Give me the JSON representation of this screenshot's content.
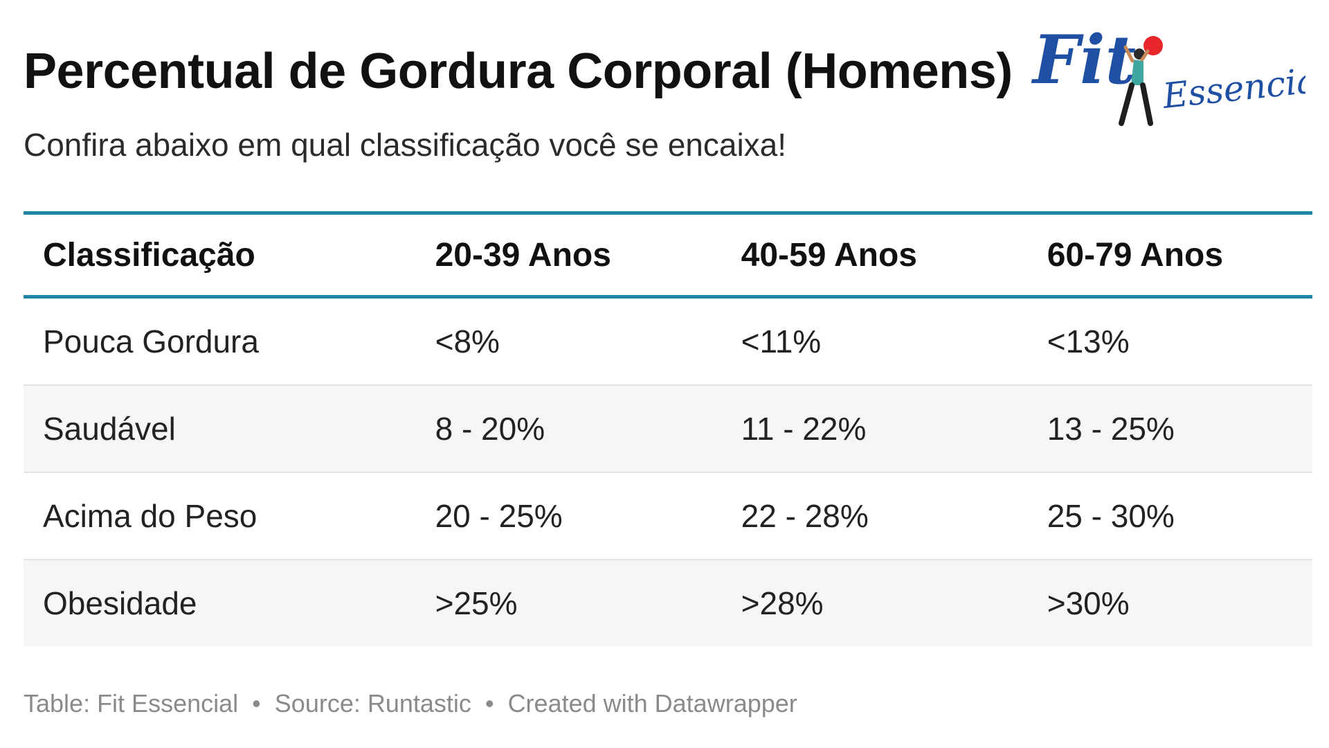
{
  "header": {
    "title": "Percentual de Gordura Corporal (Homens)",
    "subtitle": "Confira abaixo em qual classificação você se encaixa!"
  },
  "logo": {
    "word_fit": "Fit",
    "word_essencial": "Essencial",
    "brand_color": "#1f4fa3",
    "ball_color": "#e8262c"
  },
  "chart_data": {
    "type": "table",
    "columns": [
      "Classificação",
      "20-39 Anos",
      "40-59 Anos",
      "60-79 Anos"
    ],
    "rows": [
      [
        "Pouca Gordura",
        "<8%",
        "<11%",
        "<13%"
      ],
      [
        "Saudável",
        "8 - 20%",
        "11 - 22%",
        "13 - 25%"
      ],
      [
        "Acima do Peso",
        "20 - 25%",
        "22 - 28%",
        "25 - 30%"
      ],
      [
        "Obesidade",
        ">25%",
        ">28%",
        ">30%"
      ]
    ],
    "header_rule_color": "#1f84a8",
    "stripe_color": "#f6f6f6"
  },
  "footer": {
    "table_credit": "Table: Fit Essencial",
    "source": "Source: Runtastic",
    "created_with": "Created with Datawrapper",
    "separator": "•"
  }
}
